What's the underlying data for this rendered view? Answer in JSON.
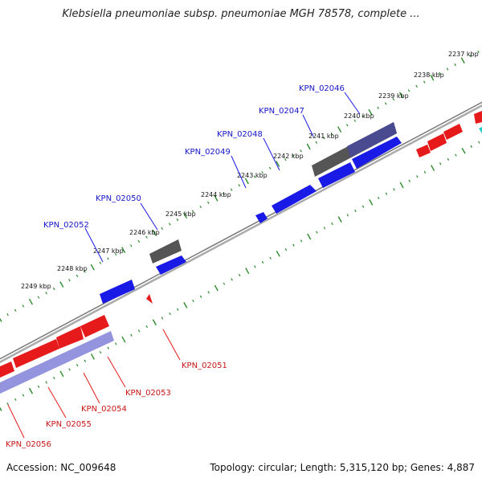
{
  "title": "Klebsiella pneumoniae subsp. pneumoniae MGH 78578, complete ...",
  "footer": {
    "accession": "Accession: NC_009648",
    "summary": "Topology: circular; Length: 5,315,120 bp; Genes: 4,887"
  },
  "colors": {
    "forward_gene": "#1a1ae6",
    "reverse_gene": "#e61a1a",
    "hypothetical_gene": "#666666",
    "selected_forward": "#5a5ac8",
    "selected_reverse": "#8a8ae0",
    "backbone": "#999999",
    "tick": "#2a8a2a"
  },
  "ticks": [
    {
      "label": "2237 kbp"
    },
    {
      "label": "2238 kbp"
    },
    {
      "label": "2239 kbp"
    },
    {
      "label": "2240 kbp"
    },
    {
      "label": "2241 kbp"
    },
    {
      "label": "2242 kbp"
    },
    {
      "label": "2243 kbp"
    },
    {
      "label": "2244 kbp"
    },
    {
      "label": "2245 kbp"
    },
    {
      "label": "2246 kbp"
    },
    {
      "label": "2247 kbp"
    },
    {
      "label": "2248 kbp"
    },
    {
      "label": "2249 kbp"
    }
  ],
  "gene_labels": [
    {
      "name": "KPN_02046",
      "strand": "forward"
    },
    {
      "name": "KPN_02047",
      "strand": "forward"
    },
    {
      "name": "KPN_02048",
      "strand": "forward"
    },
    {
      "name": "KPN_02049",
      "strand": "forward"
    },
    {
      "name": "KPN_02050",
      "strand": "forward"
    },
    {
      "name": "KPN_02052",
      "strand": "forward"
    },
    {
      "name": "KPN_02051",
      "strand": "reverse"
    },
    {
      "name": "KPN_02053",
      "strand": "reverse"
    },
    {
      "name": "KPN_02054",
      "strand": "reverse"
    },
    {
      "name": "KPN_02055",
      "strand": "reverse"
    },
    {
      "name": "KPN_02056",
      "strand": "reverse"
    }
  ]
}
